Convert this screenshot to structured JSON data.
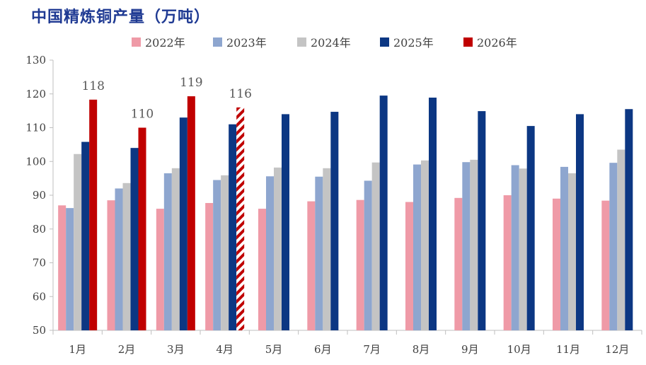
{
  "chart_data": {
    "type": "bar",
    "title": "中国精炼铜产量（万吨）",
    "xlabel": "",
    "ylabel": "",
    "ylim": [
      50,
      130
    ],
    "yticks": [
      50,
      60,
      70,
      80,
      90,
      100,
      110,
      120,
      130
    ],
    "categories": [
      "1月",
      "2月",
      "3月",
      "4月",
      "5月",
      "6月",
      "7月",
      "8月",
      "9月",
      "10月",
      "11月",
      "12月"
    ],
    "series": [
      {
        "name": "2022年",
        "color": "#ef9aa7",
        "values": [
          87.0,
          88.5,
          86.0,
          87.7,
          86.0,
          88.2,
          88.6,
          88.0,
          89.2,
          90.0,
          89.0,
          88.4
        ]
      },
      {
        "name": "2023年",
        "color": "#8ea6cf",
        "values": [
          86.2,
          92.0,
          96.5,
          94.5,
          95.6,
          95.5,
          94.3,
          99.1,
          99.8,
          98.9,
          98.4,
          99.6
        ]
      },
      {
        "name": "2024年",
        "color": "#c4c4c4",
        "values": [
          102.2,
          93.6,
          98.0,
          95.9,
          98.2,
          98.0,
          99.7,
          100.3,
          100.5,
          97.9,
          96.5,
          103.5
        ]
      },
      {
        "name": "2025年",
        "color": "#0c3783",
        "values": [
          105.8,
          104.0,
          113.0,
          111.0,
          114.0,
          114.7,
          119.5,
          118.9,
          114.9,
          110.5,
          114.0,
          115.5
        ]
      },
      {
        "name": "2026年",
        "color": "#c00000",
        "values": [
          118.3,
          110.0,
          119.3,
          116.0,
          null,
          null,
          null,
          null,
          null,
          null,
          null,
          null
        ],
        "hatched_index": 3
      }
    ],
    "data_labels": [
      "118",
      "110",
      "119",
      "116"
    ],
    "legend_position": "top"
  }
}
